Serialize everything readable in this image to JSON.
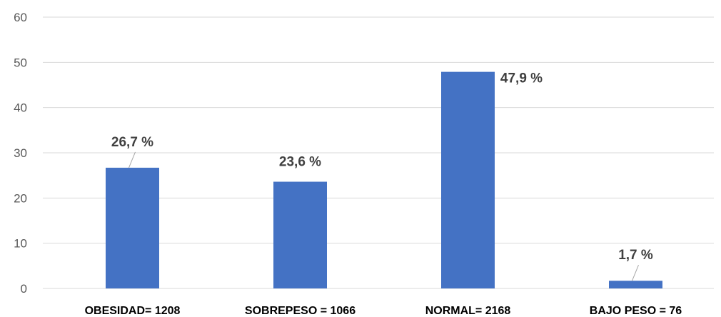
{
  "chart_data": {
    "type": "bar",
    "categories": [
      "OBESIDAD= 1208",
      "SOBREPESO = 1066",
      "NORMAL= 2168",
      "BAJO PESO = 76"
    ],
    "values": [
      26.7,
      23.6,
      47.9,
      1.7
    ],
    "data_labels": [
      "26,7 %",
      "23,6 %",
      "47,9 %",
      "1,7 %"
    ],
    "ylim": [
      0,
      60
    ],
    "yticks": [
      "0",
      "10",
      "20",
      "30",
      "40",
      "50",
      "60"
    ],
    "grid": true,
    "legend": "none",
    "bar_color": "#4472C4",
    "grid_color": "#D9D9D9"
  }
}
